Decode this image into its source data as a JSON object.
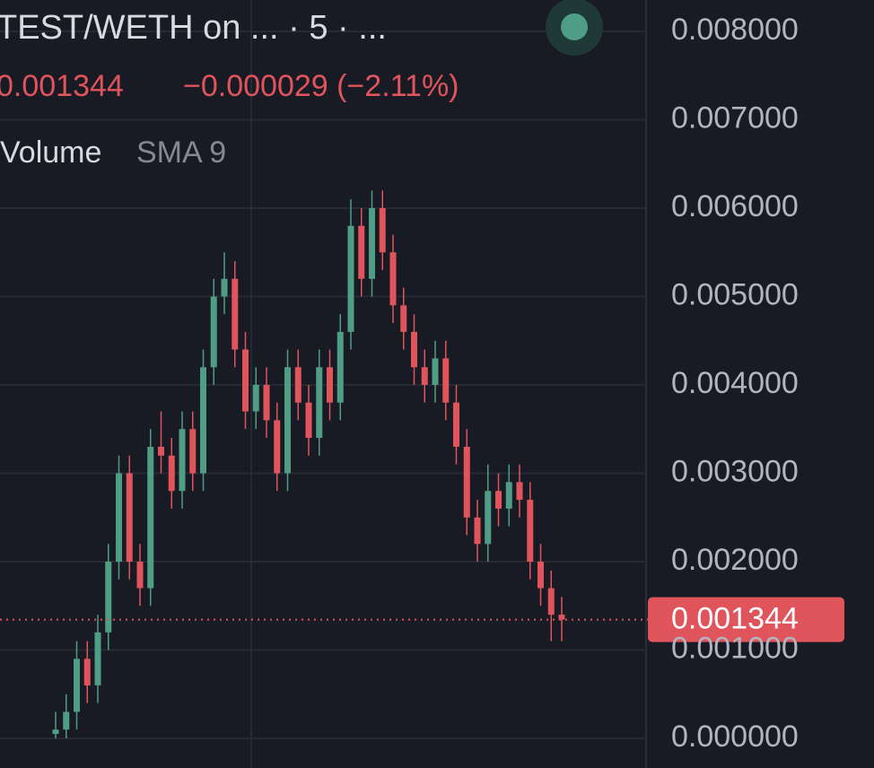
{
  "chart_data": {
    "type": "candlestick",
    "title": "TEST/WETH on ... · 5 · ...",
    "change": "−0.000029 (−2.11%)",
    "indicator": "Volume",
    "indicator_setting": "SMA 9",
    "last_price": 0.001344,
    "up_color": "#4f9d85",
    "down_color": "#e0545c",
    "ylim": [
      0,
      0.008
    ],
    "yticks": [
      {
        "value": 0,
        "label": "0.000000"
      },
      {
        "value": 0.001,
        "label": "0.001000"
      },
      {
        "value": 0.002,
        "label": "0.002000"
      },
      {
        "value": 0.003,
        "label": "0.003000"
      },
      {
        "value": 0.004,
        "label": "0.004000"
      },
      {
        "value": 0.005,
        "label": "0.005000"
      },
      {
        "value": 0.006,
        "label": "0.006000"
      },
      {
        "value": 0.007,
        "label": "0.007000"
      },
      {
        "value": 0.008,
        "label": "0.008000"
      }
    ],
    "grid": true,
    "open": [
      5e-05,
      0.0001,
      0.0003,
      0.0009,
      0.0006,
      0.0012,
      0.002,
      0.003,
      0.002,
      0.0017,
      0.0033,
      0.0032,
      0.0028,
      0.0035,
      0.003,
      0.0042,
      0.005,
      0.0052,
      0.0044,
      0.0037,
      0.004,
      0.0036,
      0.003,
      0.0042,
      0.0038,
      0.0034,
      0.0042,
      0.0038,
      0.0046,
      0.0058,
      0.0052,
      0.006,
      0.0055,
      0.0049,
      0.0046,
      0.0042,
      0.004,
      0.0043,
      0.0038,
      0.0033,
      0.0025,
      0.0022,
      0.0028,
      0.0026,
      0.0029,
      0.0027,
      0.002,
      0.0017,
      0.0014
    ],
    "high": [
      0.0003,
      0.0005,
      0.0011,
      0.0011,
      0.0014,
      0.0022,
      0.0032,
      0.0032,
      0.0022,
      0.0035,
      0.0037,
      0.0034,
      0.0037,
      0.0037,
      0.0044,
      0.0052,
      0.0055,
      0.0054,
      0.0046,
      0.0042,
      0.0042,
      0.0038,
      0.0044,
      0.0044,
      0.004,
      0.0044,
      0.0044,
      0.0048,
      0.0061,
      0.006,
      0.0062,
      0.0062,
      0.0057,
      0.0051,
      0.0048,
      0.0044,
      0.0045,
      0.0045,
      0.004,
      0.0035,
      0.0027,
      0.0031,
      0.003,
      0.0031,
      0.0031,
      0.0029,
      0.0022,
      0.0019,
      0.0016
    ],
    "low": [
      0,
      0,
      0.0001,
      0.0004,
      0.0004,
      0.001,
      0.0018,
      0.0018,
      0.0015,
      0.0015,
      0.003,
      0.0026,
      0.0026,
      0.0028,
      0.0028,
      0.004,
      0.0048,
      0.0042,
      0.0035,
      0.0035,
      0.0034,
      0.0028,
      0.0028,
      0.0036,
      0.0032,
      0.0032,
      0.0036,
      0.0036,
      0.0044,
      0.005,
      0.005,
      0.0053,
      0.0047,
      0.0044,
      0.004,
      0.0038,
      0.0038,
      0.0036,
      0.0031,
      0.0023,
      0.002,
      0.002,
      0.0024,
      0.0024,
      0.0025,
      0.0018,
      0.0015,
      0.0011,
      0.0011
    ],
    "close": [
      0.0001,
      0.0003,
      0.0009,
      0.0006,
      0.0012,
      0.002,
      0.003,
      0.002,
      0.0017,
      0.0033,
      0.0032,
      0.0028,
      0.0035,
      0.003,
      0.0042,
      0.005,
      0.0052,
      0.0044,
      0.0037,
      0.004,
      0.0036,
      0.003,
      0.0042,
      0.0038,
      0.0034,
      0.0042,
      0.0038,
      0.0046,
      0.0058,
      0.0052,
      0.006,
      0.0055,
      0.0049,
      0.0046,
      0.0042,
      0.004,
      0.0043,
      0.0038,
      0.0033,
      0.0025,
      0.0022,
      0.0028,
      0.0026,
      0.0029,
      0.0027,
      0.002,
      0.0017,
      0.0014,
      0.001344
    ]
  }
}
